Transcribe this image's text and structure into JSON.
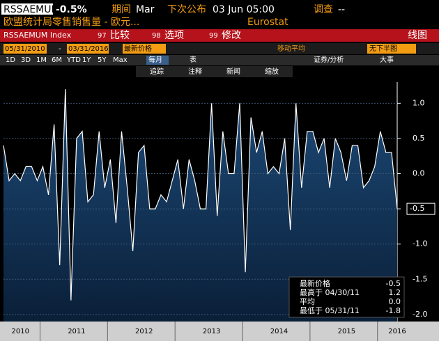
{
  "ui": {
    "ticker": "RSSAEMUM",
    "change": "-0.5%",
    "period_label": "期间",
    "period": "Mar",
    "next_label": "下次公布",
    "next": "03 Jun 05:00",
    "survey_label": "调查",
    "survey": "--",
    "description": "欧盟统计局零售销售量 - 欧元...",
    "source": "Eurostat",
    "index": "RSSAEMUM Index",
    "btn_compare_no": "97",
    "btn_compare": "比较",
    "btn_options_no": "98",
    "btn_options": "选项",
    "btn_edit_no": "99",
    "btn_edit": "修改",
    "chart_kind": "线图",
    "start": "05/31/2010",
    "dash": "-",
    "end": "03/31/2016",
    "price": "最新价格",
    "mavg": "移动平均",
    "lower": "无下半图",
    "ranges": [
      "1D",
      "3D",
      "1M",
      "6M",
      "YTD",
      "1Y",
      "5Y",
      "Max"
    ],
    "freq": "每月",
    "table": "表",
    "security": "证券/分析",
    "events": "大事",
    "tools": [
      "追踪",
      "注释",
      "新闻",
      "缩放"
    ],
    "legend": [
      [
        "最新价格",
        "-0.5"
      ],
      [
        "最高于 04/30/11",
        "1.2"
      ],
      [
        "平均",
        "0.0"
      ],
      [
        "最低于 05/31/11",
        "-1.8"
      ]
    ]
  },
  "chart_data": {
    "type": "area",
    "categories": [
      null,
      null,
      null,
      "2010",
      null,
      null,
      null,
      null,
      null,
      null,
      null,
      null,
      null,
      "2011",
      null,
      null,
      null,
      null,
      null,
      null,
      null,
      null,
      null,
      null,
      null,
      "2012",
      null,
      null,
      null,
      null,
      null,
      null,
      null,
      null,
      null,
      null,
      null,
      "2013",
      null,
      null,
      null,
      null,
      null,
      null,
      null,
      null,
      null,
      null,
      null,
      "2014",
      null,
      null,
      null,
      null,
      null,
      null,
      null,
      null,
      null,
      null,
      null,
      "2015",
      null,
      null,
      null,
      null,
      null,
      null,
      null,
      null,
      "2016"
    ],
    "values": [
      0.4,
      -0.1,
      0.0,
      -0.1,
      0.1,
      0.1,
      -0.1,
      0.1,
      -0.3,
      0.7,
      -1.3,
      1.2,
      -1.8,
      0.5,
      0.6,
      -0.4,
      -0.3,
      0.6,
      -0.2,
      0.2,
      -0.7,
      0.6,
      -0.2,
      -1.1,
      0.3,
      0.4,
      -0.5,
      -0.5,
      -0.3,
      -0.4,
      -0.1,
      0.2,
      -0.5,
      0.2,
      -0.1,
      -0.5,
      -0.5,
      1.0,
      -0.6,
      0.6,
      0.0,
      0.0,
      1.0,
      -1.4,
      0.8,
      0.3,
      0.6,
      0.0,
      0.1,
      0.0,
      0.5,
      -0.8,
      1.0,
      -0.2,
      0.6,
      0.6,
      0.3,
      0.5,
      -0.2,
      0.5,
      0.3,
      -0.1,
      0.4,
      0.4,
      -0.2,
      -0.1,
      0.1,
      0.6,
      0.3,
      0.3,
      -0.5
    ],
    "color": "#ffffff",
    "fill": "#123a63",
    "ylim": [
      -2.1,
      1.3
    ],
    "yticks": [
      {
        "value": 1,
        "label": "1.0"
      },
      0.5,
      {
        "value": 0,
        "label": "0.0"
      },
      -0.5,
      {
        "value": -1,
        "label": "-1.0"
      },
      -1.5,
      {
        "value": -2,
        "label": "-2.0"
      }
    ],
    "grid": true
  }
}
